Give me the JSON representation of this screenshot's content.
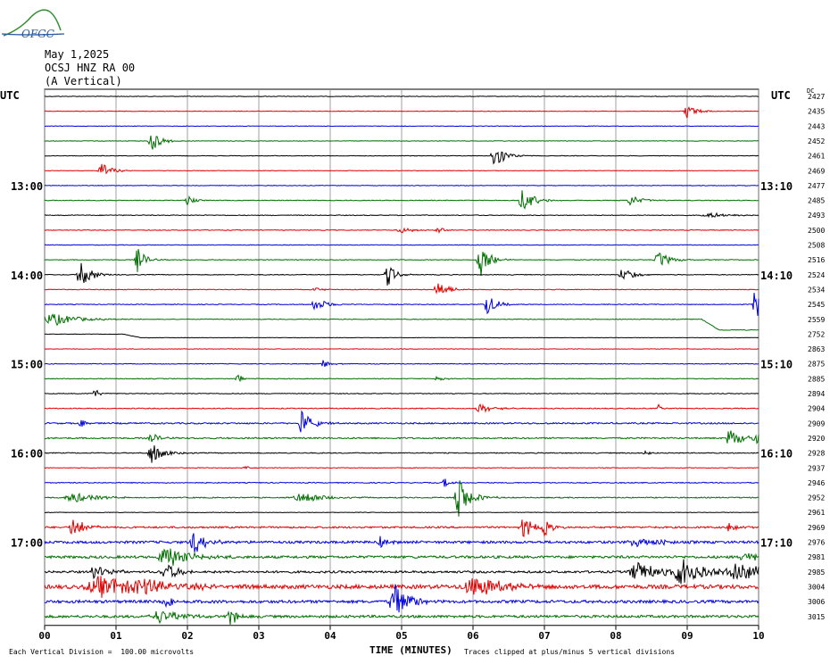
{
  "header": {
    "date": "May 1,2025",
    "station": "OCSJ HNZ RA 00",
    "component": "(A Vertical)",
    "utc_left": "UTC",
    "utc_right": "UTC",
    "dc_label": "DC",
    "logo_text": "OFGC"
  },
  "footer": {
    "vertical_division": "Each Vertical Division =  100.00 microvolts",
    "clipping": "Traces clipped at plus/minus 5 vertical divisions",
    "x_axis_title": "TIME (MINUTES)"
  },
  "chart_data": {
    "type": "line",
    "title": "May 1,2025 OCSJ HNZ RA 00 (A Vertical)",
    "xlabel": "TIME (MINUTES)",
    "xlim": [
      0,
      10
    ],
    "x_ticks": [
      "00",
      "01",
      "02",
      "03",
      "04",
      "05",
      "06",
      "07",
      "08",
      "09",
      "10"
    ],
    "colors": [
      "#000000",
      "#e00000",
      "#0000dd",
      "#007000"
    ],
    "rows": [
      {
        "dc": "2427",
        "left": "",
        "right": "",
        "events": [],
        "noise": 0.3
      },
      {
        "dc": "2435",
        "left": "",
        "right": "",
        "events": [
          [
            9.0,
            8,
            0.12
          ]
        ],
        "noise": 0.3
      },
      {
        "dc": "2443",
        "left": "",
        "right": "",
        "events": [],
        "noise": 0.3
      },
      {
        "dc": "2452",
        "left": "",
        "right": "",
        "events": [
          [
            1.5,
            12,
            0.12
          ]
        ],
        "noise": 0.3
      },
      {
        "dc": "2461",
        "left": "",
        "right": "",
        "events": [
          [
            6.3,
            18,
            0.12
          ]
        ],
        "noise": 0.3
      },
      {
        "dc": "2469",
        "left": "",
        "right": "",
        "events": [
          [
            0.8,
            10,
            0.12
          ]
        ],
        "noise": 0.3
      },
      {
        "dc": "2477",
        "left": "13:00",
        "right": "13:10",
        "events": [],
        "noise": 0.3
      },
      {
        "dc": "2485",
        "left": "",
        "right": "",
        "events": [
          [
            2.0,
            6,
            0.08
          ],
          [
            6.7,
            14,
            0.15
          ],
          [
            8.2,
            6,
            0.15
          ]
        ],
        "noise": 0.4
      },
      {
        "dc": "2493",
        "left": "",
        "right": "",
        "events": [
          [
            9.3,
            3,
            0.3
          ]
        ],
        "noise": 0.4
      },
      {
        "dc": "2500",
        "left": "",
        "right": "",
        "events": [
          [
            5.0,
            3,
            0.2
          ],
          [
            5.5,
            4,
            0.1
          ]
        ],
        "noise": 0.4
      },
      {
        "dc": "2508",
        "left": "",
        "right": "",
        "events": [],
        "noise": 0.3
      },
      {
        "dc": "2516",
        "left": "",
        "right": "",
        "events": [
          [
            1.3,
            14,
            0.1
          ],
          [
            6.1,
            20,
            0.12
          ],
          [
            8.6,
            10,
            0.15
          ]
        ],
        "noise": 0.4
      },
      {
        "dc": "2524",
        "left": "14:00",
        "right": "14:10",
        "events": [
          [
            0.5,
            14,
            0.15
          ],
          [
            4.8,
            14,
            0.1
          ],
          [
            8.1,
            8,
            0.15
          ]
        ],
        "noise": 0.4
      },
      {
        "dc": "2534",
        "left": "",
        "right": "",
        "events": [
          [
            3.8,
            3,
            0.1
          ],
          [
            5.5,
            12,
            0.12
          ]
        ],
        "noise": 0.4
      },
      {
        "dc": "2545",
        "left": "",
        "right": "",
        "events": [
          [
            3.8,
            8,
            0.15
          ],
          [
            6.2,
            12,
            0.12
          ],
          [
            9.95,
            30,
            0.1
          ]
        ],
        "noise": 0.4
      },
      {
        "dc": "2559",
        "left": "",
        "right": "",
        "events": [
          [
            0.1,
            8,
            0.3
          ]
        ],
        "noise": 0.4,
        "drift": [
          9.2,
          12
        ]
      },
      {
        "dc": "2752",
        "left": "",
        "right": "",
        "events": [],
        "noise": 0.2,
        "drift": [
          1.1,
          4
        ]
      },
      {
        "dc": "2863",
        "left": "",
        "right": "",
        "events": [],
        "noise": 0.3
      },
      {
        "dc": "2875",
        "left": "15:00",
        "right": "15:10",
        "events": [
          [
            3.9,
            5,
            0.1
          ]
        ],
        "noise": 0.4
      },
      {
        "dc": "2885",
        "left": "",
        "right": "",
        "events": [
          [
            2.7,
            5,
            0.08
          ],
          [
            5.5,
            4,
            0.08
          ]
        ],
        "noise": 0.4
      },
      {
        "dc": "2894",
        "left": "",
        "right": "",
        "events": [
          [
            0.7,
            7,
            0.06
          ]
        ],
        "noise": 0.4
      },
      {
        "dc": "2904",
        "left": "",
        "right": "",
        "events": [
          [
            6.1,
            5,
            0.2
          ],
          [
            8.6,
            4,
            0.05
          ]
        ],
        "noise": 0.5
      },
      {
        "dc": "2909",
        "left": "",
        "right": "",
        "events": [
          [
            0.5,
            8,
            0.05
          ],
          [
            3.6,
            14,
            0.15
          ]
        ],
        "noise": 0.8
      },
      {
        "dc": "2920",
        "left": "",
        "right": "",
        "events": [
          [
            1.5,
            6,
            0.1
          ],
          [
            9.6,
            12,
            0.15
          ],
          [
            9.95,
            8,
            0.1
          ]
        ],
        "noise": 0.8
      },
      {
        "dc": "2928",
        "left": "16:00",
        "right": "16:10",
        "events": [
          [
            1.5,
            12,
            0.15
          ],
          [
            8.4,
            5,
            0.05
          ]
        ],
        "noise": 0.5
      },
      {
        "dc": "2937",
        "left": "",
        "right": "",
        "events": [
          [
            2.8,
            3,
            0.05
          ]
        ],
        "noise": 0.4
      },
      {
        "dc": "2946",
        "left": "",
        "right": "",
        "events": [
          [
            5.6,
            5,
            0.1
          ]
        ],
        "noise": 0.5
      },
      {
        "dc": "2952",
        "left": "",
        "right": "",
        "events": [
          [
            0.4,
            6,
            0.3
          ],
          [
            3.6,
            6,
            0.3
          ],
          [
            5.8,
            22,
            0.15
          ]
        ],
        "noise": 0.6
      },
      {
        "dc": "2961",
        "left": "",
        "right": "",
        "events": [],
        "noise": 0.3
      },
      {
        "dc": "2969",
        "left": "",
        "right": "",
        "events": [
          [
            0.4,
            12,
            0.15
          ],
          [
            6.7,
            12,
            0.15
          ],
          [
            7.0,
            12,
            0.1
          ],
          [
            9.6,
            8,
            0.1
          ]
        ],
        "noise": 1.0
      },
      {
        "dc": "2976",
        "left": "17:00",
        "right": "17:10",
        "events": [
          [
            2.1,
            14,
            0.15
          ],
          [
            4.7,
            6,
            0.1
          ],
          [
            8.3,
            6,
            0.3
          ]
        ],
        "noise": 1.4
      },
      {
        "dc": "2981",
        "left": "",
        "right": "",
        "events": [
          [
            1.7,
            12,
            0.3
          ],
          [
            9.8,
            6,
            0.2
          ]
        ],
        "noise": 1.4
      },
      {
        "dc": "2985",
        "left": "",
        "right": "",
        "events": [
          [
            0.7,
            8,
            0.2
          ],
          [
            1.7,
            10,
            0.2
          ],
          [
            8.3,
            12,
            0.3
          ],
          [
            8.9,
            16,
            0.3
          ],
          [
            9.7,
            12,
            0.4
          ]
        ],
        "noise": 1.2
      },
      {
        "dc": "3004",
        "left": "",
        "right": "",
        "events": [
          [
            0.8,
            12,
            0.6
          ],
          [
            1.4,
            8,
            0.4
          ],
          [
            6.0,
            12,
            0.4
          ]
        ],
        "noise": 2.2
      },
      {
        "dc": "3006",
        "left": "",
        "right": "",
        "events": [
          [
            4.9,
            22,
            0.2
          ],
          [
            1.7,
            6,
            0.2
          ]
        ],
        "noise": 1.6
      },
      {
        "dc": "3015",
        "left": "",
        "right": "",
        "events": [
          [
            2.6,
            10,
            0.1
          ],
          [
            1.6,
            8,
            0.3
          ]
        ],
        "noise": 1.4
      }
    ]
  }
}
